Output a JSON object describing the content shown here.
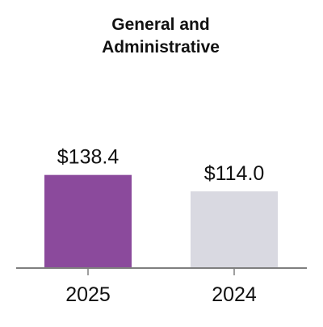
{
  "chart_data": {
    "type": "bar",
    "title_lines": [
      "General and",
      "Administrative"
    ],
    "categories": [
      "2025",
      "2024"
    ],
    "values": [
      138.4,
      114.0
    ],
    "data_labels": [
      "$138.4",
      "$114.0"
    ],
    "colors": [
      "#8B4A9C",
      "#D9D9E1"
    ],
    "axis_color": "#7F7F7F",
    "xlabel": "",
    "ylabel": "",
    "ylim": [
      0,
      360
    ],
    "grid": false,
    "legend": "none"
  }
}
